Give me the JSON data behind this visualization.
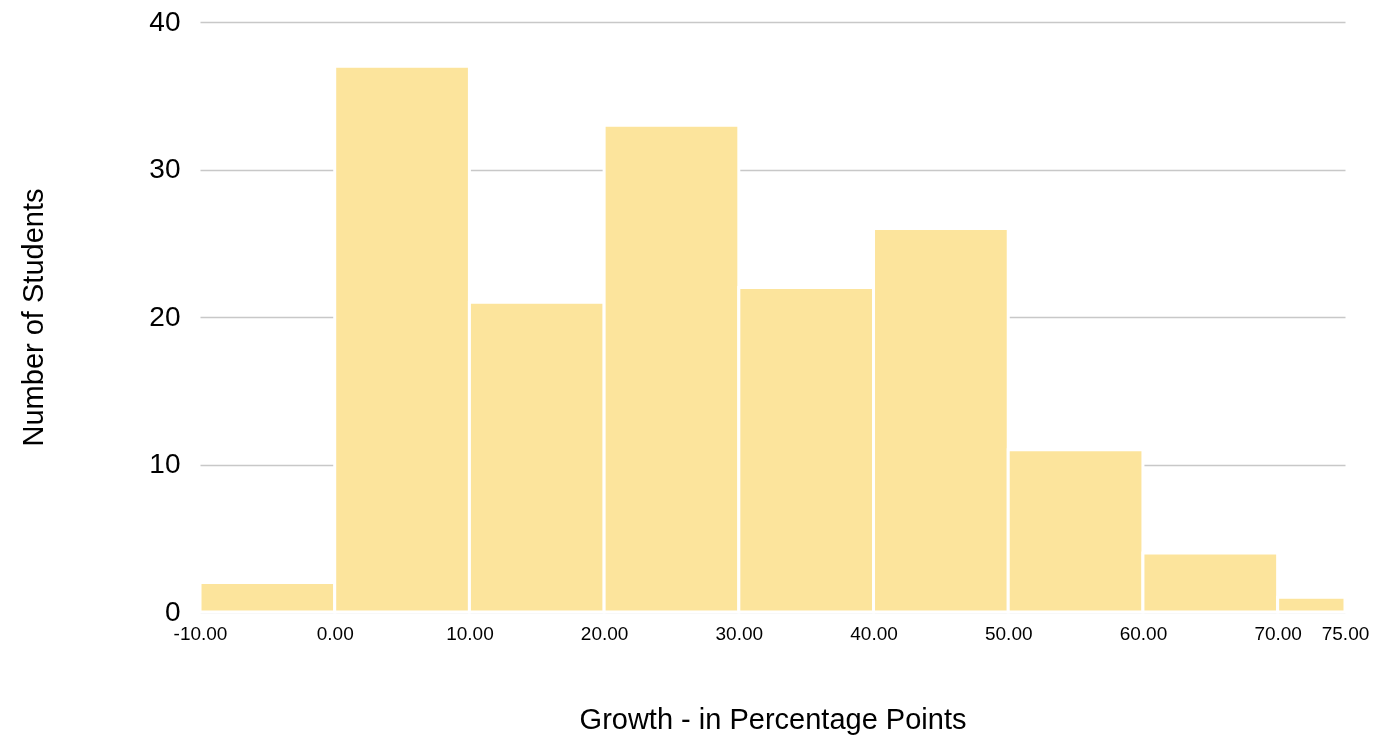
{
  "chart_data": {
    "type": "histogram",
    "xlabel": "Growth - in Percentage Points",
    "ylabel": "Number of Students",
    "bins": [
      -10,
      0,
      10,
      20,
      30,
      40,
      50,
      60,
      70,
      75
    ],
    "values": [
      2,
      37,
      21,
      33,
      22,
      26,
      11,
      4,
      1
    ],
    "color": "#fce49c",
    "xlim": [
      -10,
      75
    ],
    "xticks": [
      {
        "value": -10,
        "label": "-10.00"
      },
      {
        "value": 0,
        "label": "0.00"
      },
      {
        "value": 10,
        "label": "10.00"
      },
      {
        "value": 20,
        "label": "20.00"
      },
      {
        "value": 30,
        "label": "30.00"
      },
      {
        "value": 40,
        "label": "40.00"
      },
      {
        "value": 50,
        "label": "50.00"
      },
      {
        "value": 60,
        "label": "60.00"
      },
      {
        "value": 70,
        "label": "70.00"
      },
      {
        "value": 75,
        "label": "75.00"
      }
    ],
    "ylim": [
      0,
      40
    ],
    "yticks": [
      0,
      10,
      20,
      30,
      40
    ],
    "grid": "y"
  }
}
